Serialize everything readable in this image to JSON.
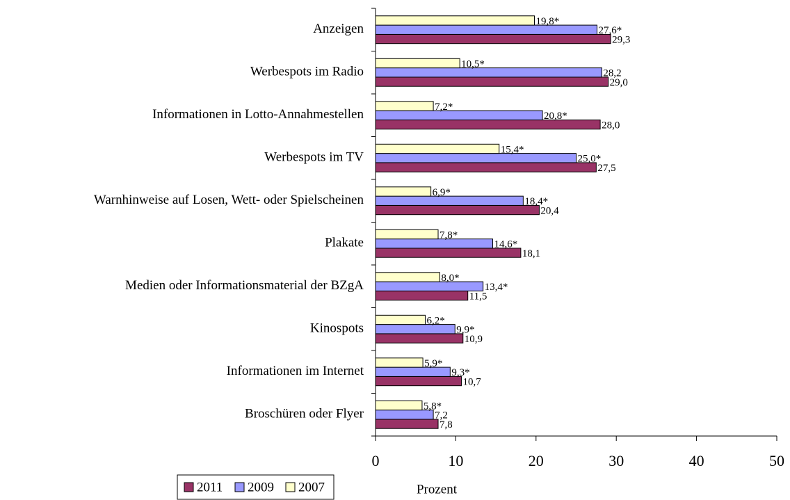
{
  "chart_data": {
    "type": "bar",
    "orientation": "horizontal",
    "categories": [
      "Anzeigen",
      "Werbespots im Radio",
      "Informationen in Lotto-Annahmestellen",
      "Werbespots im TV",
      "Warnhinweise auf Losen, Wett- oder Spielscheinen",
      "Plakate",
      "Medien oder Informationsmaterial der BZgA",
      "Kinospots",
      "Informationen im Internet",
      "Broschüren oder Flyer"
    ],
    "series": [
      {
        "name": "2011",
        "color": "#993366",
        "values": [
          29.3,
          29.0,
          28.0,
          27.5,
          20.4,
          18.1,
          11.5,
          10.9,
          10.7,
          7.8
        ],
        "value_labels": [
          "29,3",
          "29,0",
          "28,0",
          "27,5",
          "20,4",
          "18,1",
          "11,5",
          "10,9",
          "10,7",
          "7,8"
        ]
      },
      {
        "name": "2009",
        "color": "#9999ff",
        "values": [
          27.6,
          28.2,
          20.8,
          25.0,
          18.4,
          14.6,
          13.4,
          9.9,
          9.3,
          7.2
        ],
        "value_labels": [
          "27,6*",
          "28,2",
          "20,8*",
          "25,0*",
          "18,4*",
          "14,6*",
          "13,4*",
          "9,9*",
          "9,3*",
          "7,2"
        ]
      },
      {
        "name": "2007",
        "color": "#ffffcc",
        "values": [
          19.8,
          10.5,
          7.2,
          15.4,
          6.9,
          7.8,
          8.0,
          6.2,
          5.9,
          5.8
        ],
        "value_labels": [
          "19,8*",
          "10,5*",
          "7,2*",
          "15,4*",
          "6,9*",
          "7,8*",
          "8,0*",
          "6,2*",
          "5,9*",
          "5,8*"
        ]
      }
    ],
    "x_label": "Prozent",
    "xlim": [
      0,
      50
    ],
    "xticks": [
      0,
      10,
      20,
      30,
      40,
      50
    ],
    "legend": "bottom-left"
  }
}
